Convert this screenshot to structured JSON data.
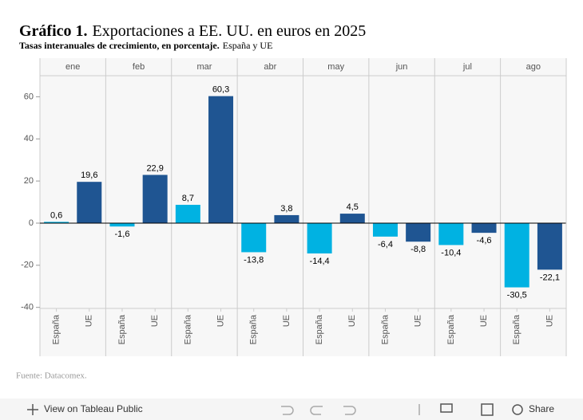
{
  "chart_data": {
    "type": "bar",
    "title_prefix": "Gráfico 1.",
    "title": "Exportaciones a EE. UU. en euros en 2025",
    "subtitle_prefix": "Tasas interanuales de crecimiento, en porcentaje.",
    "subtitle": "España y UE",
    "categories": [
      "ene",
      "feb",
      "mar",
      "abr",
      "may",
      "jun",
      "jul",
      "ago"
    ],
    "series": [
      {
        "name": "España",
        "color": "#00b2e2",
        "values": [
          0.6,
          -1.6,
          8.7,
          -13.8,
          -14.4,
          -6.4,
          -10.4,
          -30.5
        ],
        "value_labels": [
          "0,6",
          "-1,6",
          "8,7",
          "-13,8",
          "-14,4",
          "-6,4",
          "-10,4",
          "-30,5"
        ]
      },
      {
        "name": "UE",
        "color": "#1f5592",
        "values": [
          19.6,
          22.9,
          60.3,
          3.8,
          4.5,
          -8.8,
          -4.6,
          -22.1
        ],
        "value_labels": [
          "19,6",
          "22,9",
          "60,3",
          "3,8",
          "4,5",
          "-8,8",
          "-4,6",
          "-22,1"
        ]
      }
    ],
    "ylim": [
      -40.5,
      70
    ],
    "yticks": [
      -40,
      -20,
      0,
      20,
      40,
      60
    ],
    "source": "Fuente: Datacomex."
  },
  "toolbar": {
    "view": "View on Tableau Public",
    "share": "Share"
  }
}
